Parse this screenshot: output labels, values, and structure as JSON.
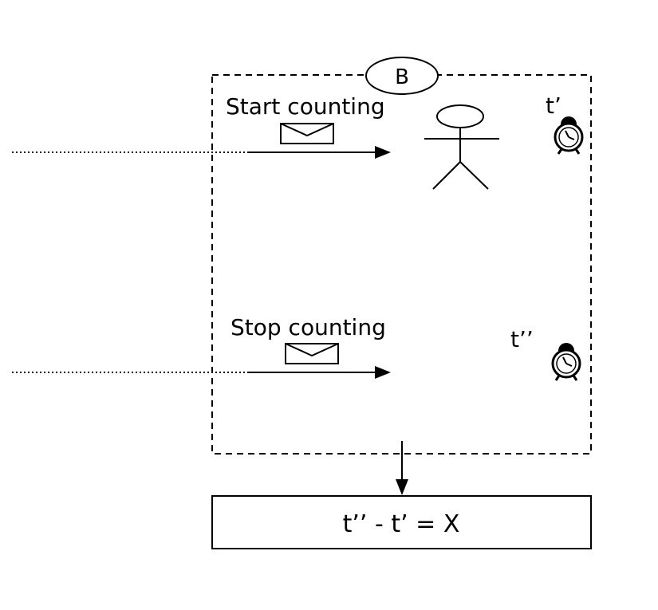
{
  "node_label": "B",
  "start_message": {
    "label": "Start counting"
  },
  "stop_message": {
    "label": "Stop counting"
  },
  "time_start": "t’",
  "time_stop": "t’’",
  "result": {
    "equation": "t’’ - t’ = X"
  },
  "colors": {
    "stroke": "#000000",
    "background": "#ffffff"
  }
}
